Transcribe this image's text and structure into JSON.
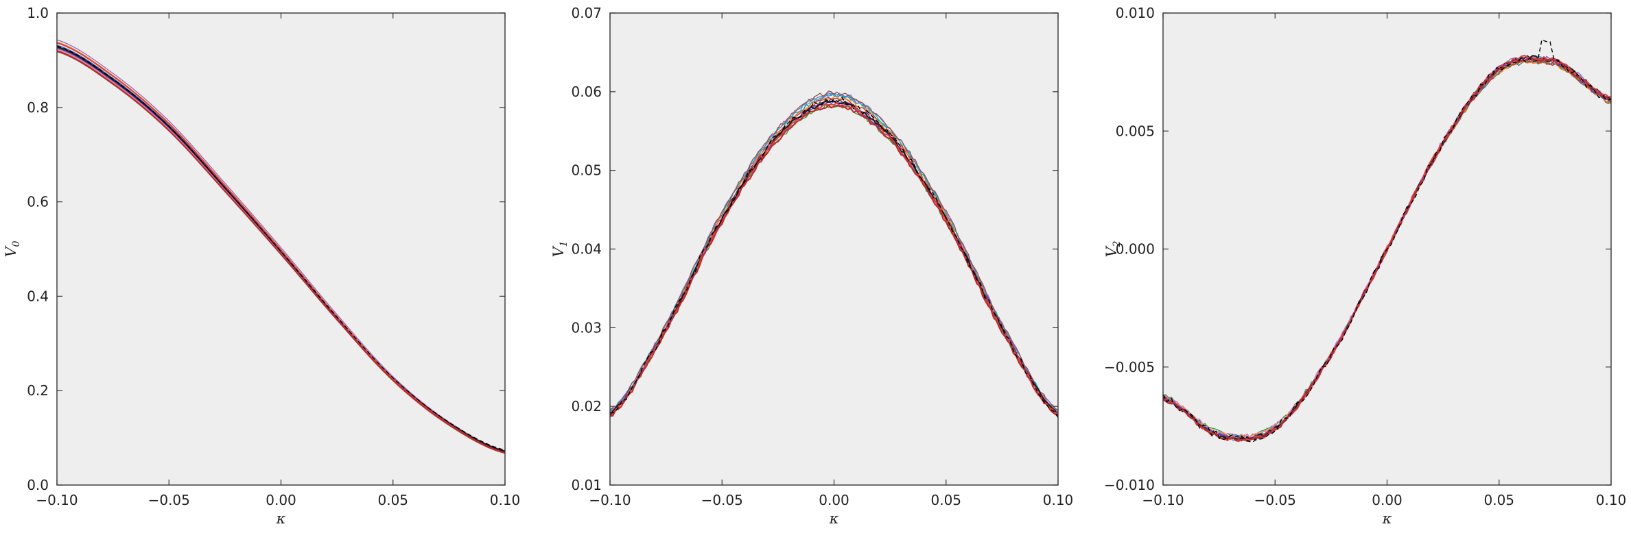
{
  "chart_data": [
    {
      "type": "line",
      "xlabel": "κ",
      "ylabel": "V",
      "ylabel_sub": "0",
      "xlim": [
        -0.1,
        0.1
      ],
      "ylim": [
        0.0,
        1.0
      ],
      "xticks": [
        "−0.10",
        "−0.05",
        "0.00",
        "0.05",
        "0.10"
      ],
      "xtick_values": [
        -0.1,
        -0.05,
        0.0,
        0.05,
        0.1
      ],
      "yticks": [
        "0.0",
        "0.2",
        "0.4",
        "0.6",
        "0.8",
        "1.0"
      ],
      "ytick_values": [
        0.0,
        0.2,
        0.4,
        0.6,
        0.8,
        1.0
      ],
      "background": "#eeeeee",
      "grid": false,
      "legend": "none",
      "x": [
        -0.1,
        -0.075,
        -0.05,
        -0.025,
        0.0,
        0.025,
        0.05,
        0.075,
        0.1
      ],
      "curve_y": [
        0.93,
        0.86,
        0.76,
        0.63,
        0.495,
        0.355,
        0.225,
        0.13,
        0.07
      ],
      "curve_colors": [
        "#1f77b4",
        "#d62728",
        "#2ca02c",
        "#ff7f0e",
        "#17becf",
        "#9467bd",
        "#8c564b",
        "#e377c2",
        "#3b4cc0",
        "#6b2d7b",
        "#1a1a1a",
        "#d64541",
        "#c1272d"
      ],
      "dashed_reference": {
        "color": "#000000",
        "dashed": true
      }
    },
    {
      "type": "line",
      "xlabel": "κ",
      "ylabel": "V",
      "ylabel_sub": "1",
      "xlim": [
        -0.1,
        0.1
      ],
      "ylim": [
        0.01,
        0.07
      ],
      "xticks": [
        "−0.10",
        "−0.05",
        "0.00",
        "0.05",
        "0.10"
      ],
      "xtick_values": [
        -0.1,
        -0.05,
        0.0,
        0.05,
        0.1
      ],
      "yticks": [
        "0.01",
        "0.02",
        "0.03",
        "0.04",
        "0.05",
        "0.06",
        "0.07"
      ],
      "ytick_values": [
        0.01,
        0.02,
        0.03,
        0.04,
        0.05,
        0.06,
        0.07
      ],
      "background": "#eeeeee",
      "grid": false,
      "legend": "none",
      "x": [
        -0.1,
        -0.075,
        -0.05,
        -0.025,
        0.0,
        0.025,
        0.05,
        0.075,
        0.1
      ],
      "curve_y": [
        0.019,
        0.03,
        0.044,
        0.0545,
        0.059,
        0.0545,
        0.044,
        0.03,
        0.019
      ],
      "curve_colors": [
        "#1f77b4",
        "#d62728",
        "#2ca02c",
        "#ff7f0e",
        "#17becf",
        "#9467bd",
        "#8c564b",
        "#e377c2",
        "#3b4cc0",
        "#6b2d7b",
        "#1a1a1a",
        "#d64541",
        "#c1272d"
      ],
      "dashed_reference": {
        "color": "#000000",
        "dashed": true
      }
    },
    {
      "type": "line",
      "xlabel": "κ",
      "ylabel": "V",
      "ylabel_sub": "2",
      "xlim": [
        -0.1,
        0.1
      ],
      "ylim": [
        -0.01,
        0.01
      ],
      "xticks": [
        "−0.10",
        "−0.05",
        "0.00",
        "0.05",
        "0.10"
      ],
      "xtick_values": [
        -0.1,
        -0.05,
        0.0,
        0.05,
        0.1
      ],
      "yticks": [
        "−0.010",
        "−0.005",
        "0.000",
        "0.005",
        "0.010"
      ],
      "ytick_values": [
        -0.01,
        -0.005,
        0.0,
        0.005,
        0.01
      ],
      "background": "#eeeeee",
      "grid": false,
      "legend": "none",
      "x": [
        -0.1,
        -0.075,
        -0.05,
        -0.025,
        0.0,
        0.025,
        0.05,
        0.075,
        0.1
      ],
      "curve_y": [
        -0.0063,
        -0.0079,
        -0.0076,
        -0.0045,
        0.0,
        0.0045,
        0.0076,
        0.0079,
        0.0063
      ],
      "curve_colors": [
        "#1f77b4",
        "#d62728",
        "#2ca02c",
        "#ff7f0e",
        "#17becf",
        "#9467bd",
        "#8c564b",
        "#e377c2",
        "#3b4cc0",
        "#6b2d7b",
        "#1a1a1a",
        "#d64541",
        "#c1272d"
      ],
      "dashed_reference": {
        "color": "#000000",
        "dashed": true
      }
    }
  ]
}
